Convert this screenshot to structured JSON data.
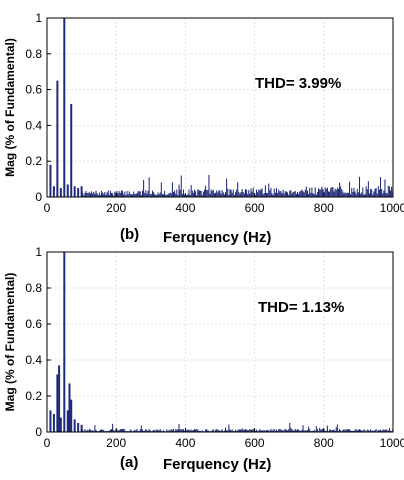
{
  "colors": {
    "bar": "#1f2a78",
    "axis": "#000000",
    "grid": "#d9d9d9"
  },
  "chart_data": [
    {
      "type": "bar",
      "panel_label": "(b)",
      "xlabel": "Ferquency (Hz)",
      "ylabel": "Mag (% of Fundamental)",
      "annotation": "THD= 3.99%",
      "xlim": [
        0,
        1000
      ],
      "ylim": [
        0,
        1
      ],
      "xticks": [
        "0",
        "200",
        "400",
        "600",
        "800",
        "1000"
      ],
      "yticks": [
        "0",
        "0.2",
        "0.4",
        "0.6",
        "0.8",
        "1"
      ],
      "grid": true,
      "bar_width_hz": 3,
      "noise": {
        "seed": 7,
        "base_low": 0.03,
        "base_high": 0.055,
        "spread": 0.08,
        "from_hz": 100,
        "to_hz": 1000
      },
      "x": [
        10,
        20,
        30,
        40,
        50,
        60,
        70,
        80,
        90,
        100
      ],
      "values": [
        0.18,
        0.06,
        0.65,
        0.05,
        1.0,
        0.07,
        0.52,
        0.06,
        0.05,
        0.06
      ]
    },
    {
      "type": "bar",
      "panel_label": "(a)",
      "xlabel": "Ferquency (Hz)",
      "ylabel": "Mag (% of Fundamental)",
      "annotation": "THD= 1.13%",
      "xlim": [
        0,
        1000
      ],
      "ylim": [
        0,
        1
      ],
      "xticks": [
        "0",
        "200",
        "400",
        "600",
        "800",
        "1000"
      ],
      "yticks": [
        "0",
        "0.2",
        "0.4",
        "0.6",
        "0.8",
        "1"
      ],
      "grid": true,
      "bar_width_hz": 3,
      "noise": {
        "seed": 13,
        "base_low": 0.015,
        "base_high": 0.015,
        "spread": 0.035,
        "from_hz": 100,
        "to_hz": 1000
      },
      "x": [
        10,
        20,
        30,
        35,
        40,
        50,
        60,
        65,
        70,
        80,
        90,
        100
      ],
      "values": [
        0.12,
        0.1,
        0.32,
        0.37,
        0.08,
        1.0,
        0.12,
        0.27,
        0.18,
        0.07,
        0.05,
        0.04
      ]
    }
  ]
}
